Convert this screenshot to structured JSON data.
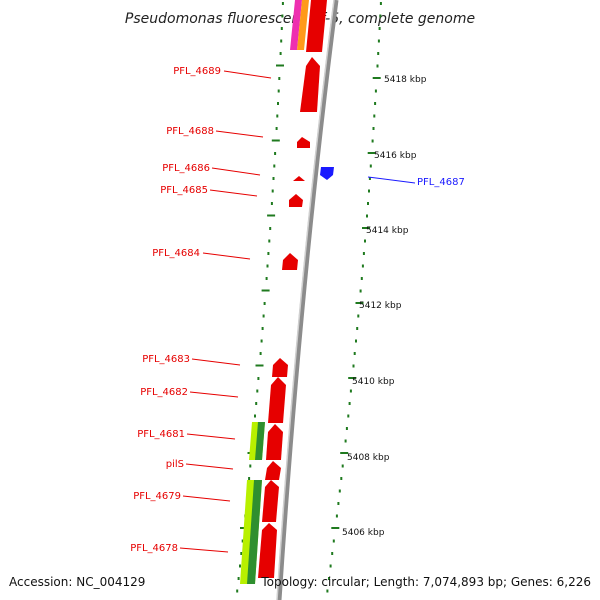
{
  "title": "Pseudomonas fluorescens Pf-5, complete genome",
  "accession": "Accession: NC_004129",
  "topology": "Topology: circular; Length: 7,074,893 bp; Genes: 6,226",
  "colors": {
    "forward": "#e60000",
    "reverse": "#1a1aff",
    "backbone": "#8c8c8c",
    "tick": "#1f7a1f",
    "green_light": "#b8f000",
    "green_dark": "#2f8f2f",
    "orange": "#ff9a1a",
    "magenta": "#ee2fb0"
  },
  "kbp_labels": [
    "5418 kbp",
    "5416 kbp",
    "5414 kbp",
    "5412 kbp",
    "5410 kbp",
    "5408 kbp",
    "5406 kbp"
  ],
  "genes": [
    {
      "name": "PFL_4689",
      "strand": "forward"
    },
    {
      "name": "PFL_4688",
      "strand": "forward"
    },
    {
      "name": "PFL_4686",
      "strand": "forward"
    },
    {
      "name": "PFL_4685",
      "strand": "forward"
    },
    {
      "name": "PFL_4687",
      "strand": "reverse"
    },
    {
      "name": "PFL_4684",
      "strand": "forward"
    },
    {
      "name": "PFL_4683",
      "strand": "forward"
    },
    {
      "name": "PFL_4682",
      "strand": "forward"
    },
    {
      "name": "PFL_4681",
      "strand": "forward"
    },
    {
      "name": "pilS",
      "strand": "forward"
    },
    {
      "name": "PFL_4679",
      "strand": "forward"
    },
    {
      "name": "PFL_4678",
      "strand": "forward"
    }
  ]
}
